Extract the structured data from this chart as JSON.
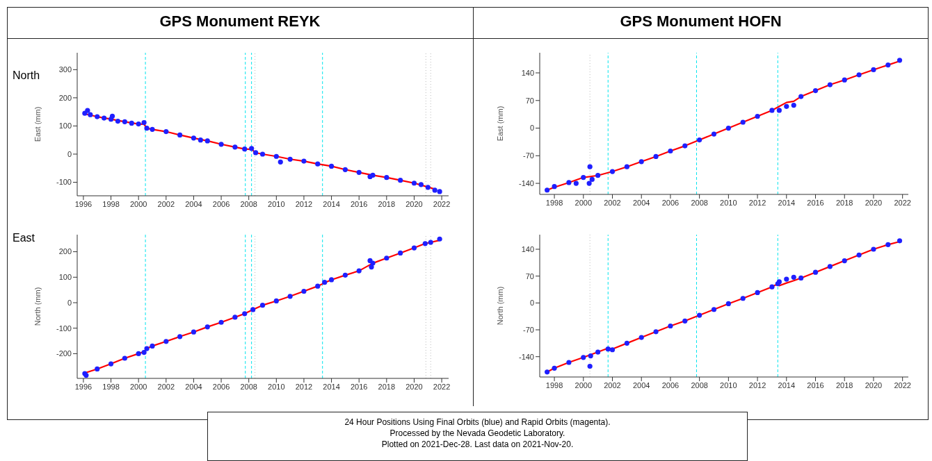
{
  "chart_data": [
    {
      "type": "scatter",
      "title": "GPS Monument REYK",
      "ylabel": "East (mm)",
      "annotations": [
        "North"
      ],
      "xlim": [
        1995.55,
        2022.5
      ],
      "xticks": [
        1996,
        1998,
        2000,
        2002,
        2004,
        2006,
        2008,
        2010,
        2012,
        2014,
        2016,
        2018,
        2020,
        2022
      ],
      "ylim": [
        -148,
        360
      ],
      "yticks": [
        -100,
        0,
        100,
        200,
        300
      ],
      "ref_lines": [
        {
          "axis": "x",
          "value": 2000.5,
          "color": "#00e5ee",
          "line_style": "dashed"
        },
        {
          "axis": "x",
          "value": 2007.75,
          "color": "#00e5ee",
          "line_style": "dashed"
        },
        {
          "axis": "x",
          "value": 2008.2,
          "color": "#00e5ee",
          "line_style": "dashed"
        },
        {
          "axis": "x",
          "value": 2008.45,
          "color": "#bbbbbb",
          "line_style": "dotted"
        },
        {
          "axis": "x",
          "value": 2013.35,
          "color": "#00e5ee",
          "line_style": "dashed"
        },
        {
          "axis": "x",
          "value": 2020.85,
          "color": "#bbbbbb",
          "line_style": "dotted"
        },
        {
          "axis": "x",
          "value": 2021.2,
          "color": "#bbbbbb",
          "line_style": "dotted"
        }
      ],
      "series": [
        {
          "type": "line",
          "color": "#ff0000",
          "x": [
            1996.1,
            1997,
            1998,
            1999,
            2000,
            2000.4,
            2000.6,
            2001,
            2002,
            2003,
            2004,
            2005,
            2006,
            2007,
            2007.7,
            2008.2,
            2008.5,
            2009,
            2010,
            2011,
            2012,
            2013,
            2014,
            2015,
            2016,
            2017,
            2018,
            2019,
            2020,
            2021,
            2021.6
          ],
          "values": [
            143,
            133,
            124,
            115,
            107,
            106,
            92,
            88,
            80,
            68,
            57,
            47,
            35,
            25,
            18,
            17,
            5,
            0,
            -8,
            -18,
            -25,
            -35,
            -43,
            -55,
            -65,
            -75,
            -83,
            -93,
            -103,
            -117,
            -126
          ]
        },
        {
          "type": "scatter",
          "marker": "circle",
          "color": "#1f1fff",
          "x": [
            1996.1,
            1996.3,
            1996.5,
            1997,
            1997.5,
            1998,
            1998.1,
            1998.5,
            1999,
            1999.5,
            2000,
            2000.4,
            2000.6,
            2001,
            2002,
            2003,
            2004,
            2004.5,
            2005,
            2006,
            2007,
            2007.7,
            2008.2,
            2008.5,
            2009,
            2010,
            2010.3,
            2011,
            2012,
            2013,
            2014,
            2015,
            2016,
            2016.8,
            2017,
            2018,
            2019,
            2020,
            2020.5,
            2021,
            2021.5,
            2021.85
          ],
          "values": [
            145,
            155,
            140,
            133,
            128,
            124,
            135,
            117,
            115,
            110,
            107,
            112,
            92,
            88,
            80,
            68,
            57,
            50,
            47,
            35,
            25,
            18,
            20,
            5,
            0,
            -8,
            -28,
            -18,
            -25,
            -35,
            -43,
            -55,
            -65,
            -80,
            -75,
            -83,
            -93,
            -103,
            -108,
            -118,
            -128,
            -133
          ]
        }
      ]
    },
    {
      "type": "scatter",
      "ylabel": "North (mm)",
      "annotations": [
        "East"
      ],
      "xlim": [
        1995.55,
        2022.5
      ],
      "xticks": [
        1996,
        1998,
        2000,
        2002,
        2004,
        2006,
        2008,
        2010,
        2012,
        2014,
        2016,
        2018,
        2020,
        2022
      ],
      "ylim": [
        -297,
        267
      ],
      "yticks": [
        -200,
        -100,
        0,
        100,
        200
      ],
      "ref_lines": [
        {
          "axis": "x",
          "value": 2000.5,
          "color": "#00e5ee",
          "line_style": "dashed"
        },
        {
          "axis": "x",
          "value": 2007.75,
          "color": "#00e5ee",
          "line_style": "dashed"
        },
        {
          "axis": "x",
          "value": 2008.2,
          "color": "#00e5ee",
          "line_style": "dashed"
        },
        {
          "axis": "x",
          "value": 2008.45,
          "color": "#bbbbbb",
          "line_style": "dotted"
        },
        {
          "axis": "x",
          "value": 2013.35,
          "color": "#00e5ee",
          "line_style": "dashed"
        },
        {
          "axis": "x",
          "value": 2020.85,
          "color": "#bbbbbb",
          "line_style": "dotted"
        },
        {
          "axis": "x",
          "value": 2021.2,
          "color": "#bbbbbb",
          "line_style": "dotted"
        }
      ],
      "series": [
        {
          "type": "line",
          "color": "#ff0000",
          "x": [
            1996.1,
            1997,
            1998,
            1999,
            2000,
            2000.4,
            2000.6,
            2001,
            2002,
            2003,
            2004,
            2005,
            2006,
            2007,
            2007.7,
            2008.3,
            2009,
            2010,
            2011,
            2012,
            2013,
            2013.5,
            2014,
            2015,
            2016,
            2017,
            2018,
            2019,
            2020,
            2020.8,
            2021.2,
            2021.85
          ],
          "values": [
            -276,
            -260,
            -240,
            -218,
            -200,
            -192,
            -180,
            -170,
            -152,
            -133,
            -115,
            -95,
            -77,
            -57,
            -43,
            -27,
            -10,
            7,
            25,
            45,
            65,
            78,
            90,
            108,
            125,
            155,
            175,
            195,
            215,
            232,
            237,
            245
          ]
        },
        {
          "type": "scatter",
          "marker": "circle",
          "color": "#1f1fff",
          "x": [
            1996.1,
            1996.2,
            1997,
            1998,
            1999,
            2000,
            2000.4,
            2000.6,
            2001,
            2002,
            2003,
            2004,
            2005,
            2006,
            2007,
            2007.7,
            2008.3,
            2009,
            2010,
            2011,
            2012,
            2013,
            2013.5,
            2014,
            2015,
            2016,
            2016.8,
            2016.9,
            2017,
            2018,
            2019,
            2020,
            2020.8,
            2021.2,
            2021.85
          ],
          "values": [
            -278,
            -285,
            -260,
            -240,
            -218,
            -200,
            -195,
            -180,
            -170,
            -152,
            -133,
            -115,
            -95,
            -77,
            -57,
            -43,
            -27,
            -10,
            7,
            25,
            45,
            65,
            80,
            90,
            108,
            125,
            165,
            140,
            155,
            175,
            195,
            215,
            232,
            237,
            250
          ]
        }
      ]
    },
    {
      "type": "scatter",
      "title": "GPS Monument HOFN",
      "ylabel": "East (mm)",
      "xlim": [
        1996.99,
        2022.4
      ],
      "xticks": [
        1998,
        2000,
        2002,
        2004,
        2006,
        2008,
        2010,
        2012,
        2014,
        2016,
        2018,
        2020,
        2022
      ],
      "ylim": [
        -168,
        191
      ],
      "yticks": [
        -140,
        -70,
        0,
        70,
        140
      ],
      "ref_lines": [
        {
          "axis": "x",
          "value": 2000.45,
          "color": "#bbbbbb",
          "line_style": "dotted"
        },
        {
          "axis": "x",
          "value": 2001.7,
          "color": "#00e5ee",
          "line_style": "dashed"
        },
        {
          "axis": "x",
          "value": 2007.8,
          "color": "#00e5ee",
          "line_style": "dashed"
        },
        {
          "axis": "x",
          "value": 2013.4,
          "color": "#00e5ee",
          "line_style": "dashed"
        }
      ],
      "series": [
        {
          "type": "line",
          "color": "#ff0000",
          "x": [
            1997.5,
            1998,
            1999,
            2000,
            2001,
            2002,
            2003,
            2004,
            2005,
            2006,
            2007,
            2008,
            2009,
            2010,
            2011,
            2012,
            2013,
            2013.5,
            2014,
            2014.5,
            2015,
            2016,
            2017,
            2018,
            2019,
            2020,
            2021,
            2021.8
          ],
          "values": [
            -157,
            -150,
            -138,
            -125,
            -120,
            -110,
            -98,
            -85,
            -72,
            -58,
            -45,
            -30,
            -15,
            0,
            15,
            30,
            45,
            55,
            65,
            68,
            80,
            95,
            110,
            122,
            135,
            148,
            160,
            170
          ]
        },
        {
          "type": "scatter",
          "marker": "circle",
          "color": "#1f1fff",
          "x": [
            1997.5,
            1998,
            1999,
            1999.5,
            2000,
            2000.45,
            2000.4,
            2000.6,
            2001,
            2002,
            2003,
            2004,
            2005,
            2006,
            2007,
            2008,
            2009,
            2010,
            2011,
            2012,
            2013,
            2013.5,
            2014,
            2014.5,
            2015,
            2016,
            2017,
            2018,
            2019,
            2020,
            2021,
            2021.8
          ],
          "values": [
            -157,
            -148,
            -138,
            -140,
            -125,
            -98,
            -140,
            -130,
            -120,
            -110,
            -98,
            -85,
            -72,
            -58,
            -45,
            -30,
            -15,
            0,
            15,
            30,
            45,
            45,
            55,
            58,
            80,
            95,
            110,
            122,
            135,
            148,
            160,
            172
          ]
        }
      ]
    },
    {
      "type": "scatter",
      "ylabel": "North (mm)",
      "xlim": [
        1996.99,
        2022.4
      ],
      "xticks": [
        1998,
        2000,
        2002,
        2004,
        2006,
        2008,
        2010,
        2012,
        2014,
        2016,
        2018,
        2020,
        2022
      ],
      "ylim": [
        -193,
        178
      ],
      "yticks": [
        -140,
        -70,
        0,
        70,
        140
      ],
      "annotations": [
        "24 Hour Positions Using Final Orbits (blue) and Rapid Orbits (magenta).",
        "Processed by the Nevada Geodetic Laboratory.",
        "Plotted on 2021-Dec-28. Last data on 2021-Nov-20."
      ],
      "ref_lines": [
        {
          "axis": "x",
          "value": 2000.45,
          "color": "#bbbbbb",
          "line_style": "dotted"
        },
        {
          "axis": "x",
          "value": 2001.7,
          "color": "#00e5ee",
          "line_style": "dashed"
        },
        {
          "axis": "x",
          "value": 2007.8,
          "color": "#00e5ee",
          "line_style": "dashed"
        },
        {
          "axis": "x",
          "value": 2013.4,
          "color": "#00e5ee",
          "line_style": "dashed"
        }
      ],
      "series": [
        {
          "type": "line",
          "color": "#ff0000",
          "x": [
            1997.5,
            1998,
            1999,
            2000,
            2001,
            2001.7,
            2002,
            2003,
            2004,
            2005,
            2006,
            2007,
            2008,
            2009,
            2010,
            2011,
            2012,
            2013,
            2013.4,
            2013.5,
            2014,
            2014.5,
            2015,
            2016,
            2017,
            2018,
            2019,
            2020,
            2021,
            2021.8
          ],
          "values": [
            -180,
            -170,
            -155,
            -142,
            -128,
            -118,
            -120,
            -105,
            -90,
            -75,
            -60,
            -47,
            -32,
            -17,
            -2,
            12,
            27,
            42,
            50,
            45,
            52,
            58,
            65,
            80,
            95,
            110,
            125,
            140,
            152,
            160
          ]
        },
        {
          "type": "scatter",
          "marker": "circle",
          "color": "#1f1fff",
          "x": [
            1997.5,
            1998,
            1999,
            2000,
            2000.45,
            2000.5,
            2001,
            2001.7,
            2002,
            2003,
            2004,
            2005,
            2006,
            2007,
            2008,
            2009,
            2010,
            2011,
            2012,
            2013,
            2013.4,
            2013.5,
            2014,
            2014.5,
            2015,
            2016,
            2017,
            2018,
            2019,
            2020,
            2021,
            2021.8
          ],
          "values": [
            -180,
            -170,
            -155,
            -142,
            -165,
            -138,
            -128,
            -120,
            -122,
            -105,
            -90,
            -75,
            -60,
            -47,
            -32,
            -17,
            -2,
            12,
            27,
            42,
            50,
            55,
            62,
            67,
            65,
            80,
            95,
            110,
            125,
            140,
            152,
            162
          ]
        }
      ]
    }
  ]
}
